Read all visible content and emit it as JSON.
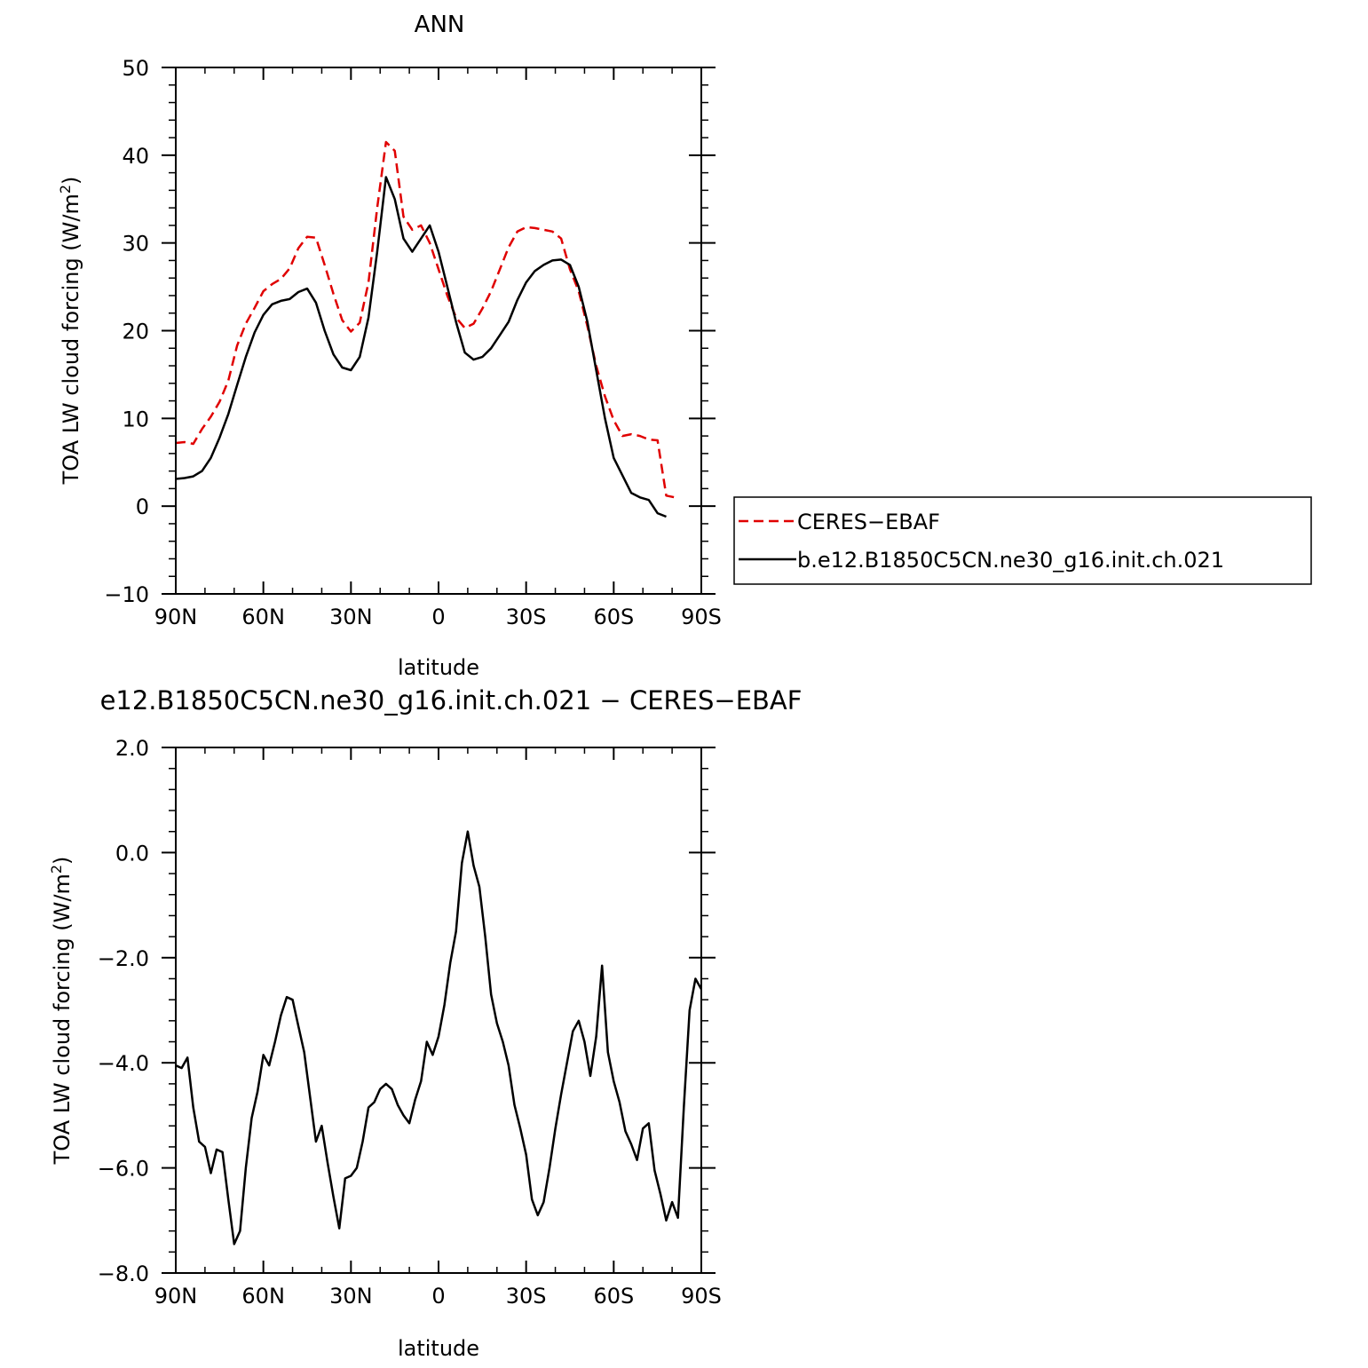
{
  "chart_data": [
    {
      "type": "line",
      "title": "ANN",
      "xlabel": "latitude",
      "ylabel": "TOA LW cloud forcing (W/m²)",
      "ylabel_main": "TOA LW cloud forcing (W/m",
      "ylabel_sup": "2",
      "ylabel_close": ")",
      "xlim": [
        90,
        -90
      ],
      "ylim": [
        -10,
        50
      ],
      "x_ticks": [
        90,
        60,
        30,
        0,
        -30,
        -60,
        -90
      ],
      "x_tick_labels": [
        "90N",
        "60N",
        "30N",
        "0",
        "30S",
        "60S",
        "90S"
      ],
      "y_ticks": [
        -10,
        0,
        10,
        20,
        30,
        40,
        50
      ],
      "y_tick_labels": [
        "−10",
        "0",
        "10",
        "20",
        "30",
        "40",
        "50"
      ],
      "legend": "right",
      "series": [
        {
          "name": "CERES−EBAF",
          "color": "#e00000",
          "style": "dashed",
          "x": [
            90,
            87,
            84,
            81,
            78,
            75,
            72,
            69,
            66,
            63,
            60,
            57,
            54,
            51,
            48,
            45,
            42,
            39,
            36,
            33,
            30,
            27,
            24,
            21,
            18,
            15,
            12,
            9,
            6,
            3,
            0,
            -3,
            -6,
            -9,
            -12,
            -15,
            -18,
            -21,
            -24,
            -27,
            -30,
            -33,
            -36,
            -39,
            -42,
            -45,
            -48,
            -51,
            -54,
            -57,
            -60,
            -63,
            -66,
            -69,
            -72,
            -75,
            -78,
            -81,
            -84,
            -87,
            -90
          ],
          "values": [
            7.2,
            7.3,
            7.1,
            8.8,
            10.2,
            11.9,
            14.3,
            18.3,
            20.8,
            22.6,
            24.5,
            25.3,
            25.9,
            27.1,
            29.4,
            30.7,
            30.6,
            27.5,
            24.2,
            21.2,
            19.9,
            20.9,
            25.5,
            34.0,
            41.5,
            40.5,
            33.0,
            31.5,
            32.0,
            30.0,
            27.0,
            24.0,
            21.5,
            20.3,
            20.8,
            22.5,
            24.5,
            27.0,
            29.5,
            31.3,
            31.8,
            31.7,
            31.5,
            31.3,
            30.5,
            27.0,
            24.5,
            20.5,
            16.0,
            12.5,
            9.8,
            8.0,
            8.2,
            8.0,
            7.6,
            7.5,
            1.2,
            1.0,
            null,
            null,
            null
          ]
        },
        {
          "name": "b.e12.B1850C5CN.ne30_g16.init.ch.021",
          "color": "#000000",
          "style": "solid",
          "x": [
            90,
            87,
            84,
            81,
            78,
            75,
            72,
            69,
            66,
            63,
            60,
            57,
            54,
            51,
            48,
            45,
            42,
            39,
            36,
            33,
            30,
            27,
            24,
            21,
            18,
            15,
            12,
            9,
            6,
            3,
            0,
            -3,
            -6,
            -9,
            -12,
            -15,
            -18,
            -21,
            -24,
            -27,
            -30,
            -33,
            -36,
            -39,
            -42,
            -45,
            -48,
            -51,
            -54,
            -57,
            -60,
            -63,
            -66,
            -69,
            -72,
            -75,
            -78,
            -81,
            -84,
            -87,
            -90
          ],
          "values": [
            3.1,
            3.2,
            3.4,
            4.0,
            5.5,
            7.8,
            10.5,
            13.8,
            17.0,
            19.8,
            21.8,
            23.0,
            23.4,
            23.6,
            24.4,
            24.8,
            23.2,
            20.0,
            17.3,
            15.8,
            15.5,
            17.0,
            21.5,
            29.0,
            37.5,
            35.0,
            30.5,
            29.0,
            30.5,
            32.0,
            29.0,
            25.0,
            21.0,
            17.5,
            16.7,
            17.0,
            18.0,
            19.5,
            21.0,
            23.5,
            25.5,
            26.8,
            27.5,
            28.0,
            28.1,
            27.5,
            25.0,
            21.0,
            15.5,
            10.0,
            5.5,
            3.5,
            1.5,
            1.0,
            0.7,
            -0.8,
            -1.2,
            null,
            null,
            null,
            null
          ]
        }
      ]
    },
    {
      "type": "line",
      "title": "e12.B1850C5CN.ne30_g16.init.ch.021 − CERES−EBAF",
      "xlabel": "latitude",
      "ylabel": "TOA LW cloud forcing (W/m²)",
      "ylabel_main": "TOA LW cloud forcing (W/m",
      "ylabel_sup": "2",
      "ylabel_close": ")",
      "xlim": [
        90,
        -90
      ],
      "ylim": [
        -8,
        2
      ],
      "x_ticks": [
        90,
        60,
        30,
        0,
        -30,
        -60,
        -90
      ],
      "x_tick_labels": [
        "90N",
        "60N",
        "30N",
        "0",
        "30S",
        "60S",
        "90S"
      ],
      "y_ticks": [
        -8,
        -6,
        -4,
        -2,
        0,
        2
      ],
      "y_tick_labels": [
        "−8.0",
        "−6.0",
        "−4.0",
        "−2.0",
        "0.0",
        "2.0"
      ],
      "series": [
        {
          "name": "",
          "color": "#000000",
          "style": "solid",
          "x": [
            90,
            88,
            86,
            84,
            82,
            80,
            78,
            76,
            74,
            72,
            70,
            68,
            66,
            64,
            62,
            60,
            58,
            56,
            54,
            52,
            50,
            48,
            46,
            44,
            42,
            40,
            38,
            36,
            34,
            32,
            30,
            28,
            26,
            24,
            22,
            20,
            18,
            16,
            14,
            12,
            10,
            8,
            6,
            4,
            2,
            0,
            -2,
            -4,
            -6,
            -8,
            -10,
            -12,
            -14,
            -16,
            -18,
            -20,
            -22,
            -24,
            -26,
            -28,
            -30,
            -32,
            -34,
            -36,
            -38,
            -40,
            -42,
            -44,
            -46,
            -48,
            -50,
            -52,
            -54,
            -56,
            -58,
            -60,
            -62,
            -64,
            -66,
            -68,
            -70,
            -72,
            -74,
            -76,
            -78,
            -80,
            -82,
            -84,
            -86,
            -88,
            -90
          ],
          "values": [
            -4.05,
            -4.1,
            -3.9,
            -4.85,
            -5.5,
            -5.6,
            -6.1,
            -5.65,
            -5.7,
            -6.6,
            -7.45,
            -7.2,
            -6.0,
            -5.05,
            -4.55,
            -3.85,
            -4.05,
            -3.6,
            -3.1,
            -2.75,
            -2.8,
            -3.3,
            -3.8,
            -4.65,
            -5.5,
            -5.2,
            -5.9,
            -6.55,
            -7.15,
            -6.2,
            -6.15,
            -6.0,
            -5.5,
            -4.85,
            -4.75,
            -4.5,
            -4.4,
            -4.5,
            -4.8,
            -5.0,
            -5.15,
            -4.7,
            -4.35,
            -3.6,
            -3.85,
            -3.5,
            -2.9,
            -2.1,
            -1.5,
            -0.2,
            0.4,
            -0.25,
            -0.65,
            -1.6,
            -2.7,
            -3.25,
            -3.6,
            -4.05,
            -4.8,
            -5.25,
            -5.75,
            -6.6,
            -6.9,
            -6.65,
            -6.0,
            -5.25,
            -4.6,
            -4.0,
            -3.4,
            -3.2,
            -3.6,
            -4.25,
            -3.5,
            -2.15,
            -3.8,
            -4.35,
            -4.75,
            -5.3,
            -5.55,
            -5.85,
            -5.25,
            -5.15,
            -6.05,
            -6.5,
            -7.0,
            -6.65,
            -6.95,
            -4.85,
            -3.0,
            -2.4,
            -2.6
          ]
        }
      ]
    }
  ]
}
